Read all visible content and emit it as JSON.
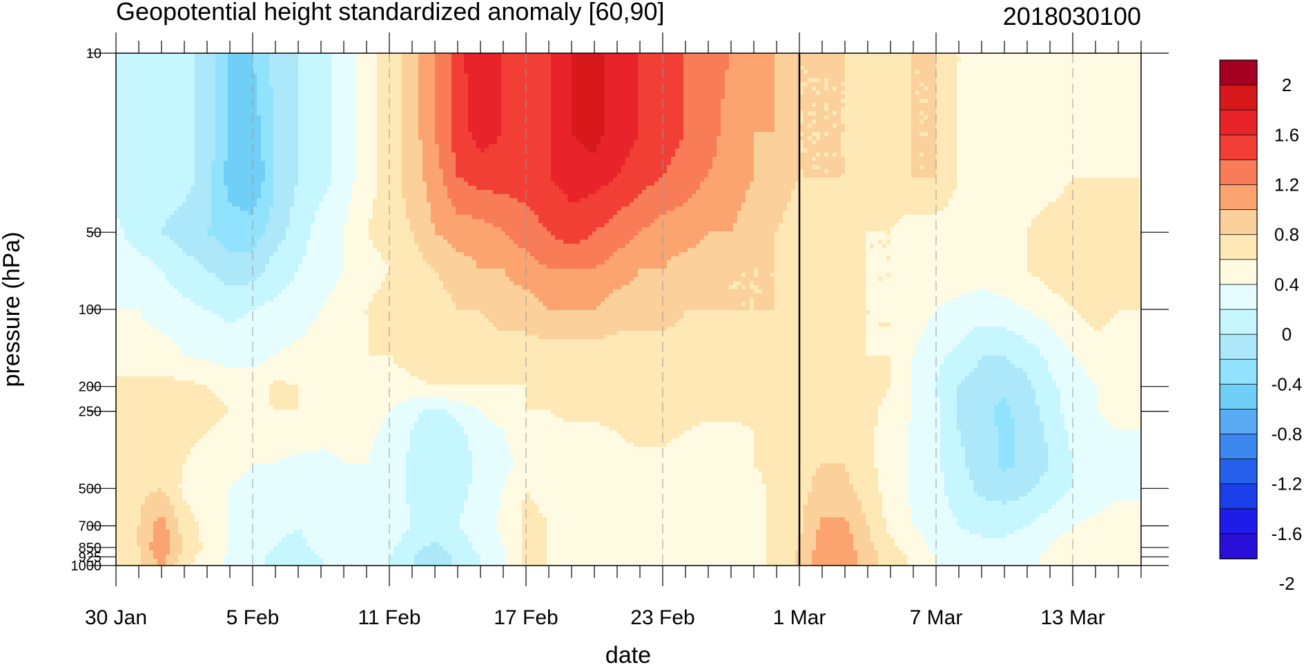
{
  "chart_data": {
    "type": "heatmap",
    "title": "Geopotential height standardized anomaly [60,90]",
    "title_right": "2018030100",
    "xlabel": "date",
    "ylabel": "pressure (hPa)",
    "y_scale": "log",
    "y_reversed": true,
    "ylim": [
      1000,
      10
    ],
    "xlim": [
      "30 Jan",
      "15 Mar"
    ],
    "x_ticks": [
      "30 Jan",
      "5 Feb",
      "11 Feb",
      "17 Feb",
      "23 Feb",
      "1 Mar",
      "7 Mar",
      "13 Mar"
    ],
    "x_tick_day_index": [
      0,
      6,
      12,
      18,
      24,
      30,
      36,
      42
    ],
    "x_last_day_index": 45,
    "y_levels": [
      10,
      50,
      100,
      200,
      250,
      500,
      700,
      850,
      925,
      1000
    ],
    "y_tick_labels": [
      "10",
      "50",
      "100",
      "200",
      "250",
      "500",
      "700",
      "850",
      "925",
      "1000"
    ],
    "analysis_divider": "1 Mar",
    "colorbar": {
      "labels": [
        "2",
        "1.6",
        "1.2",
        "0.8",
        "0.4",
        "0",
        "-0.4",
        "-0.8",
        "-1.2",
        "-1.6",
        "-2"
      ],
      "colors": [
        "#a50021",
        "#d7191c",
        "#e8232a",
        "#f23f36",
        "#f87c57",
        "#fba46f",
        "#fbd09a",
        "#fde8b6",
        "#fffbe3",
        "#e6fdff",
        "#c6f6ff",
        "#ade8fa",
        "#91e2fc",
        "#6fcff6",
        "#5aaaf4",
        "#3c87f0",
        "#2561eb",
        "#1a3ee8",
        "#1f1be8",
        "#2a0fd9"
      ]
    },
    "grid": {
      "days": [
        0,
        1,
        2,
        3,
        4,
        5,
        6,
        7,
        8,
        9,
        10,
        11,
        12,
        13,
        14,
        15,
        16,
        17,
        18,
        19,
        20,
        21,
        22,
        23,
        24,
        25,
        26,
        27,
        28,
        29,
        30,
        31,
        32,
        33,
        34,
        35,
        36,
        37,
        38,
        39,
        40,
        41,
        42,
        43,
        44,
        45
      ],
      "levels": [
        10,
        20,
        30,
        50,
        70,
        100,
        150,
        200,
        250,
        300,
        400,
        500,
        700,
        850,
        925,
        1000
      ],
      "values": [
        [
          -0.1,
          -0.1,
          -0.1,
          -0.1,
          -0.3,
          -0.6,
          -0.6,
          -0.3,
          -0.2,
          -0.1,
          0.1,
          0.3,
          0.5,
          0.7,
          1.0,
          1.3,
          1.6,
          1.4,
          1.3,
          1.4,
          1.6,
          1.7,
          1.5,
          1.4,
          1.3,
          1.2,
          1.1,
          1.0,
          0.9,
          0.8,
          0.6,
          0.6,
          0.6,
          0.5,
          0.5,
          0.6,
          0.6,
          0.4,
          0.3,
          0.3,
          0.3,
          0.3,
          0.3,
          0.3,
          0.3,
          0.3
        ],
        [
          -0.1,
          -0.1,
          -0.1,
          -0.1,
          -0.3,
          -0.6,
          -0.7,
          -0.4,
          -0.2,
          -0.1,
          0.1,
          0.3,
          0.5,
          0.7,
          1.0,
          1.3,
          1.5,
          1.4,
          1.3,
          1.4,
          1.6,
          1.7,
          1.5,
          1.4,
          1.3,
          1.2,
          1.1,
          0.9,
          0.8,
          0.8,
          0.6,
          0.6,
          0.6,
          0.5,
          0.5,
          0.6,
          0.6,
          0.4,
          0.3,
          0.3,
          0.3,
          0.3,
          0.3,
          0.3,
          0.3,
          0.3
        ],
        [
          -0.1,
          -0.1,
          -0.1,
          -0.1,
          -0.3,
          -0.7,
          -0.8,
          -0.4,
          -0.2,
          -0.1,
          0.1,
          0.3,
          0.5,
          0.7,
          0.9,
          1.2,
          1.3,
          1.3,
          1.3,
          1.4,
          1.5,
          1.5,
          1.4,
          1.3,
          1.2,
          1.1,
          1.0,
          0.9,
          0.8,
          0.7,
          0.6,
          0.6,
          0.6,
          0.5,
          0.5,
          0.6,
          0.6,
          0.4,
          0.3,
          0.3,
          0.3,
          0.3,
          0.4,
          0.4,
          0.4,
          0.4
        ],
        [
          0.05,
          -0.1,
          -0.2,
          -0.3,
          -0.4,
          -0.5,
          -0.5,
          -0.3,
          -0.1,
          0.1,
          0.2,
          0.4,
          0.5,
          0.6,
          0.8,
          0.9,
          0.9,
          1.0,
          1.1,
          1.2,
          1.3,
          1.2,
          1.1,
          1.0,
          0.9,
          0.9,
          0.8,
          0.8,
          0.7,
          0.6,
          0.5,
          0.5,
          0.5,
          0.4,
          0.4,
          0.3,
          0.3,
          0.3,
          0.3,
          0.3,
          0.4,
          0.5,
          0.5,
          0.5,
          0.5,
          0.4
        ],
        [
          0.1,
          0.1,
          0.0,
          -0.1,
          -0.2,
          -0.3,
          -0.3,
          -0.1,
          0.0,
          0.1,
          0.2,
          0.3,
          0.4,
          0.5,
          0.6,
          0.7,
          0.8,
          0.8,
          0.9,
          1.0,
          1.0,
          1.0,
          0.9,
          0.8,
          0.8,
          0.7,
          0.7,
          0.6,
          0.6,
          0.6,
          0.5,
          0.5,
          0.5,
          0.4,
          0.4,
          0.3,
          0.3,
          0.3,
          0.3,
          0.3,
          0.4,
          0.5,
          0.5,
          0.5,
          0.5,
          0.5
        ],
        [
          0.2,
          0.2,
          0.1,
          0.05,
          0.0,
          -0.05,
          0.0,
          0.05,
          0.1,
          0.2,
          0.3,
          0.4,
          0.5,
          0.5,
          0.5,
          0.6,
          0.6,
          0.7,
          0.7,
          0.8,
          0.8,
          0.8,
          0.7,
          0.7,
          0.7,
          0.6,
          0.6,
          0.6,
          0.6,
          0.6,
          0.5,
          0.5,
          0.5,
          0.4,
          0.4,
          0.3,
          0.2,
          0.15,
          0.1,
          0.15,
          0.2,
          0.3,
          0.4,
          0.5,
          0.4,
          0.4
        ],
        [
          0.3,
          0.3,
          0.3,
          0.2,
          0.15,
          0.1,
          0.1,
          0.2,
          0.25,
          0.3,
          0.3,
          0.4,
          0.4,
          0.5,
          0.5,
          0.5,
          0.5,
          0.5,
          0.5,
          0.5,
          0.5,
          0.5,
          0.5,
          0.5,
          0.5,
          0.5,
          0.5,
          0.5,
          0.5,
          0.5,
          0.5,
          0.5,
          0.5,
          0.4,
          0.4,
          0.2,
          0.05,
          -0.05,
          -0.2,
          -0.2,
          -0.1,
          0.05,
          0.2,
          0.3,
          0.3,
          0.3
        ],
        [
          0.45,
          0.45,
          0.45,
          0.45,
          0.4,
          0.35,
          0.3,
          0.45,
          0.4,
          0.3,
          0.3,
          0.3,
          0.3,
          0.35,
          0.4,
          0.4,
          0.4,
          0.4,
          0.4,
          0.45,
          0.5,
          0.5,
          0.5,
          0.5,
          0.45,
          0.45,
          0.45,
          0.45,
          0.45,
          0.5,
          0.5,
          0.5,
          0.5,
          0.45,
          0.4,
          0.2,
          0.0,
          -0.2,
          -0.3,
          -0.35,
          -0.25,
          -0.05,
          0.1,
          0.2,
          0.3,
          0.3
        ],
        [
          0.45,
          0.45,
          0.5,
          0.45,
          0.45,
          0.4,
          0.35,
          0.4,
          0.4,
          0.3,
          0.3,
          0.3,
          0.2,
          0.05,
          -0.05,
          0.05,
          0.2,
          0.3,
          0.4,
          0.4,
          0.45,
          0.45,
          0.5,
          0.5,
          0.5,
          0.45,
          0.45,
          0.45,
          0.45,
          0.45,
          0.5,
          0.5,
          0.5,
          0.45,
          0.35,
          0.2,
          0.05,
          -0.2,
          -0.35,
          -0.45,
          -0.3,
          -0.1,
          0.1,
          0.2,
          0.25,
          0.25
        ],
        [
          0.45,
          0.5,
          0.55,
          0.45,
          0.4,
          0.35,
          0.3,
          0.3,
          0.3,
          0.25,
          0.25,
          0.25,
          0.15,
          0.0,
          -0.15,
          -0.05,
          0.1,
          0.2,
          0.3,
          0.35,
          0.35,
          0.35,
          0.4,
          0.45,
          0.45,
          0.4,
          0.35,
          0.35,
          0.4,
          0.45,
          0.5,
          0.55,
          0.55,
          0.45,
          0.3,
          0.15,
          0.05,
          -0.2,
          -0.3,
          -0.45,
          -0.35,
          -0.15,
          0.05,
          0.15,
          0.2,
          0.2
        ],
        [
          0.45,
          0.55,
          0.6,
          0.4,
          0.3,
          0.25,
          0.2,
          0.2,
          0.15,
          0.15,
          0.2,
          0.2,
          0.1,
          -0.05,
          -0.2,
          -0.1,
          0.05,
          0.15,
          0.25,
          0.3,
          0.3,
          0.3,
          0.35,
          0.35,
          0.35,
          0.3,
          0.3,
          0.3,
          0.4,
          0.45,
          0.55,
          0.6,
          0.6,
          0.45,
          0.3,
          0.15,
          0.05,
          -0.15,
          -0.3,
          -0.45,
          -0.35,
          -0.2,
          0.0,
          0.1,
          0.15,
          0.15
        ],
        [
          0.45,
          0.55,
          0.6,
          0.35,
          0.25,
          0.2,
          0.15,
          0.1,
          0.05,
          0.1,
          0.15,
          0.15,
          0.1,
          -0.05,
          -0.15,
          -0.05,
          0.05,
          0.2,
          0.4,
          0.35,
          0.35,
          0.3,
          0.3,
          0.3,
          0.3,
          0.3,
          0.3,
          0.3,
          0.35,
          0.45,
          0.55,
          0.65,
          0.65,
          0.5,
          0.3,
          0.15,
          0.05,
          -0.1,
          -0.25,
          -0.3,
          -0.25,
          -0.1,
          0.0,
          0.1,
          0.15,
          0.15
        ],
        [
          0.5,
          0.6,
          0.9,
          0.5,
          0.35,
          0.2,
          0.15,
          0.05,
          0.0,
          0.1,
          0.2,
          0.2,
          0.15,
          0.0,
          -0.1,
          0.0,
          0.1,
          0.25,
          0.45,
          0.4,
          0.35,
          0.3,
          0.3,
          0.3,
          0.3,
          0.3,
          0.3,
          0.3,
          0.35,
          0.45,
          0.55,
          0.85,
          0.85,
          0.6,
          0.35,
          0.2,
          0.1,
          0.0,
          -0.05,
          -0.05,
          0.0,
          0.1,
          0.2,
          0.25,
          0.3,
          0.3
        ],
        [
          0.5,
          0.6,
          1.0,
          0.55,
          0.35,
          0.2,
          0.1,
          0.0,
          -0.05,
          0.05,
          0.1,
          0.1,
          0.05,
          -0.15,
          -0.25,
          -0.1,
          0.05,
          0.2,
          0.45,
          0.4,
          0.35,
          0.3,
          0.35,
          0.4,
          0.35,
          0.3,
          0.3,
          0.3,
          0.35,
          0.45,
          0.6,
          0.9,
          0.9,
          0.65,
          0.45,
          0.3,
          0.15,
          0.1,
          0.05,
          0.05,
          0.1,
          0.2,
          0.3,
          0.35,
          0.35,
          0.35
        ],
        [
          0.5,
          0.55,
          0.9,
          0.5,
          0.3,
          0.15,
          0.05,
          -0.05,
          -0.1,
          0.0,
          0.05,
          0.05,
          0.0,
          -0.2,
          -0.3,
          -0.15,
          0.0,
          0.2,
          0.45,
          0.4,
          0.35,
          0.3,
          0.35,
          0.4,
          0.35,
          0.3,
          0.3,
          0.3,
          0.35,
          0.45,
          0.65,
          0.95,
          0.95,
          0.7,
          0.5,
          0.35,
          0.2,
          0.15,
          0.1,
          0.1,
          0.15,
          0.25,
          0.3,
          0.35,
          0.35,
          0.35
        ],
        [
          0.5,
          0.55,
          0.85,
          0.45,
          0.3,
          0.15,
          0.05,
          -0.05,
          -0.1,
          0.0,
          0.05,
          0.05,
          0.0,
          -0.2,
          -0.3,
          -0.15,
          0.0,
          0.2,
          0.45,
          0.4,
          0.35,
          0.3,
          0.35,
          0.4,
          0.35,
          0.3,
          0.3,
          0.3,
          0.35,
          0.45,
          0.65,
          0.95,
          0.95,
          0.7,
          0.5,
          0.35,
          0.2,
          0.15,
          0.1,
          0.1,
          0.15,
          0.25,
          0.3,
          0.35,
          0.35,
          0.35
        ]
      ]
    }
  }
}
